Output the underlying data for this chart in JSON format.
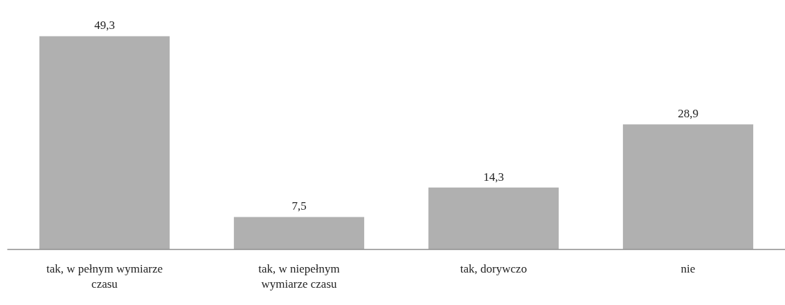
{
  "chart_data": {
    "type": "bar",
    "categories": [
      "tak, w pełnym wymiarze czasu",
      "tak, w niepełnym wymiarze czasu",
      "tak, dorywczo",
      "nie"
    ],
    "values": [
      49.3,
      7.5,
      14.3,
      28.9
    ],
    "value_labels": [
      "49,3",
      "7,5",
      "14,3",
      "28,9"
    ],
    "color": "#b0b0b0",
    "grid": false
  }
}
